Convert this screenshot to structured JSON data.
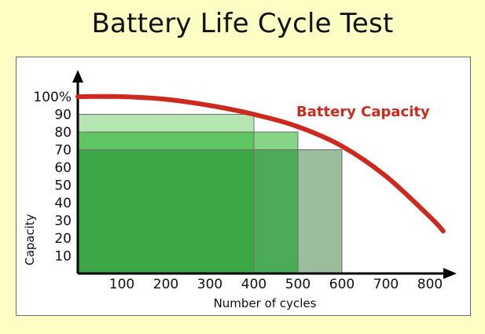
{
  "chart_data": {
    "type": "bar",
    "title": "Battery Life Cycle Test",
    "xlabel": "Number of cycles",
    "ylabel": "Capacity",
    "xlim": [
      0,
      830
    ],
    "ylim": [
      0,
      100
    ],
    "x_ticks": [
      100,
      200,
      300,
      400,
      500,
      600,
      700,
      800
    ],
    "x_tick_labels": [
      "100",
      "200",
      "300",
      "400",
      "500",
      "600",
      "700",
      "800"
    ],
    "y_ticks": [
      10,
      20,
      30,
      40,
      50,
      60,
      70,
      80,
      90,
      100
    ],
    "y_tick_labels": [
      "10",
      "20",
      "30",
      "40",
      "50",
      "60",
      "70",
      "80",
      "90",
      "100%"
    ],
    "bars": [
      {
        "x_start": 0,
        "x_end": 400,
        "value": 90,
        "color": "#b5e6b1"
      },
      {
        "x_start": 0,
        "x_end": 400,
        "value": 80,
        "color": "#5fc462"
      },
      {
        "x_start": 0,
        "x_end": 400,
        "value": 70,
        "color": "#3ea745"
      },
      {
        "x_start": 400,
        "x_end": 500,
        "value": 80,
        "color": "#86d587"
      },
      {
        "x_start": 400,
        "x_end": 500,
        "value": 70,
        "color": "#4cab57"
      },
      {
        "x_start": 500,
        "x_end": 600,
        "value": 70,
        "color": "#9bbd9e"
      }
    ],
    "series": [
      {
        "name": "Battery Capacity",
        "color": "#cc2a1e",
        "x": [
          0,
          100,
          200,
          300,
          400,
          500,
          600,
          700,
          800,
          830
        ],
        "values": [
          100,
          100,
          98.5,
          95,
          90,
          83,
          72,
          55,
          32,
          24
        ]
      }
    ]
  }
}
